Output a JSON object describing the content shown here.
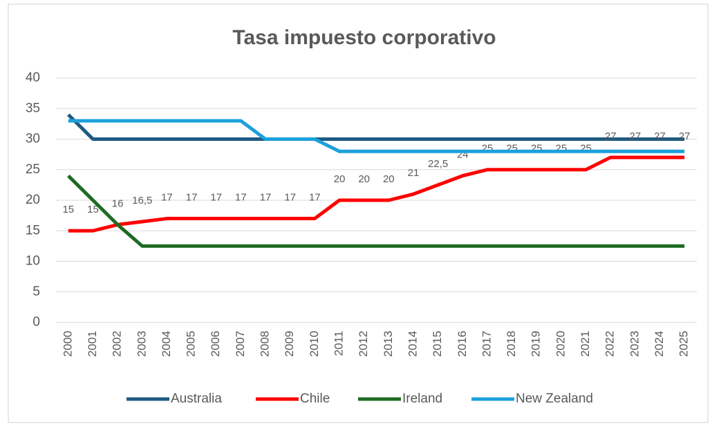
{
  "chart_data": {
    "type": "line",
    "title": "Tasa impuesto corporativo",
    "categories": [
      "2000",
      "2001",
      "2002",
      "2003",
      "2004",
      "2005",
      "2006",
      "2007",
      "2008",
      "2009",
      "2010",
      "2011",
      "2012",
      "2013",
      "2014",
      "2015",
      "2016",
      "2017",
      "2018",
      "2019",
      "2020",
      "2021",
      "2022",
      "2023",
      "2024",
      "2025"
    ],
    "series": [
      {
        "name": "Australia",
        "color": "#1f5a80",
        "values": [
          34,
          30,
          30,
          30,
          30,
          30,
          30,
          30,
          30,
          30,
          30,
          30,
          30,
          30,
          30,
          30,
          30,
          30,
          30,
          30,
          30,
          30,
          30,
          30,
          30,
          30
        ]
      },
      {
        "name": "Chile",
        "color": "#ff0000",
        "values": [
          15,
          15,
          16,
          16.5,
          17,
          17,
          17,
          17,
          17,
          17,
          17,
          20,
          20,
          20,
          21,
          22.5,
          24,
          25,
          25,
          25,
          25,
          25,
          27,
          27,
          27,
          27
        ],
        "value_labels": [
          "15",
          "15",
          "16",
          "16,5",
          "17",
          "17",
          "17",
          "17",
          "17",
          "17",
          "17",
          "20",
          "20",
          "20",
          "21",
          "22,5",
          "24",
          "25",
          "25",
          "25",
          "25",
          "25",
          "27",
          "27",
          "27",
          "27"
        ]
      },
      {
        "name": "Ireland",
        "color": "#1e6b23",
        "values": [
          24,
          20,
          16,
          12.5,
          12.5,
          12.5,
          12.5,
          12.5,
          12.5,
          12.5,
          12.5,
          12.5,
          12.5,
          12.5,
          12.5,
          12.5,
          12.5,
          12.5,
          12.5,
          12.5,
          12.5,
          12.5,
          12.5,
          12.5,
          12.5,
          12.5
        ]
      },
      {
        "name": "New Zealand",
        "color": "#1ca0dc",
        "values": [
          33,
          33,
          33,
          33,
          33,
          33,
          33,
          33,
          30,
          30,
          30,
          28,
          28,
          28,
          28,
          28,
          28,
          28,
          28,
          28,
          28,
          28,
          28,
          28,
          28,
          28
        ]
      }
    ],
    "ylim": [
      0,
      40
    ],
    "yticks": [
      0,
      5,
      10,
      15,
      20,
      25,
      30,
      35,
      40
    ],
    "grid": true,
    "legend": "bottom"
  }
}
